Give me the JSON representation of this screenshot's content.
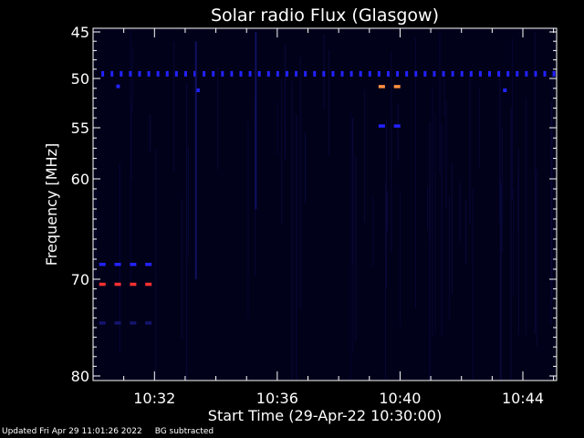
{
  "footer": {
    "updated": "Updated Fri Apr 29 11:01:26 2022",
    "note": "BG subtracted"
  },
  "colors": {
    "background": "#000000",
    "plot_background": "#01011a",
    "foreground": "#ffffff",
    "blue": "#2222ff",
    "red": "#ff3030",
    "orange": "#ff9040",
    "dim_blue": "#141470"
  },
  "chart_data": {
    "type": "heatmap",
    "title": "Solar radio Flux (Glasgow)",
    "xlabel": "Start Time (29-Apr-22 10:30:00)",
    "ylabel": "Frequency [MHz]",
    "x_unit": "minutes after 10:30",
    "xlim": [
      0,
      15.1
    ],
    "ylim": [
      45,
      80
    ],
    "y_direction": "inverted",
    "x_ticks": [
      {
        "value": 2,
        "label": "10:32"
      },
      {
        "value": 6,
        "label": "10:36"
      },
      {
        "value": 10,
        "label": "10:40"
      },
      {
        "value": 14,
        "label": "10:44"
      }
    ],
    "y_ticks": [
      {
        "value": 45,
        "label": "45"
      },
      {
        "value": 50,
        "label": "50"
      },
      {
        "value": 55,
        "label": "55"
      },
      {
        "value": 60,
        "label": "60"
      },
      {
        "value": 70,
        "label": "70"
      },
      {
        "value": 80,
        "label": "80"
      }
    ],
    "features": [
      {
        "kind": "dotted-line",
        "freq": 49.5,
        "x_start": 0.3,
        "x_end": 15.0,
        "step": 0.3,
        "color": "blue"
      },
      {
        "kind": "dashes",
        "freq": 68.5,
        "x": [
          0.2,
          0.7,
          1.2,
          1.7
        ],
        "color": "blue"
      },
      {
        "kind": "dashes",
        "freq": 70.5,
        "x": [
          0.2,
          0.7,
          1.2,
          1.7
        ],
        "color": "red"
      },
      {
        "kind": "dashes",
        "freq": 74.5,
        "x": [
          0.2,
          0.7,
          1.2,
          1.7
        ],
        "color": "dim_blue"
      },
      {
        "kind": "dashes",
        "freq": 50.8,
        "x": [
          9.3,
          9.8
        ],
        "color": "orange"
      },
      {
        "kind": "dashes",
        "freq": 54.8,
        "x": [
          9.3,
          9.8
        ],
        "color": "blue"
      },
      {
        "kind": "spot",
        "freq": 50.8,
        "x": 0.8,
        "color": "blue"
      },
      {
        "kind": "spot",
        "freq": 51.2,
        "x": 3.4,
        "color": "blue"
      },
      {
        "kind": "spot",
        "freq": 51.2,
        "x": 13.4,
        "color": "blue"
      },
      {
        "kind": "streak",
        "x": 3.35,
        "freq_from": 46,
        "freq_to": 70,
        "color": "dim_blue"
      },
      {
        "kind": "streak",
        "x": 5.3,
        "freq_from": 45,
        "freq_to": 63,
        "color": "dim_blue"
      }
    ]
  }
}
